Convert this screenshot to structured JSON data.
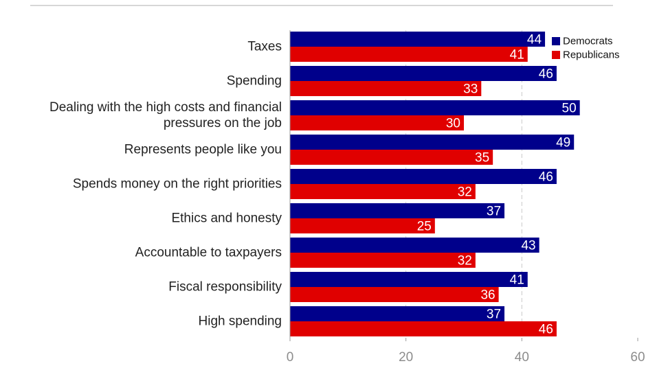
{
  "chart_data": {
    "type": "bar",
    "orientation": "horizontal",
    "categories": [
      [
        "Taxes"
      ],
      [
        "Spending"
      ],
      [
        "Dealing with the high costs and financial",
        "pressures on the job"
      ],
      [
        "Represents people like you"
      ],
      [
        "Spends money on the right priorities"
      ],
      [
        "Ethics and honesty"
      ],
      [
        "Accountable to taxpayers"
      ],
      [
        "Fiscal responsibility"
      ],
      [
        "High spending"
      ]
    ],
    "series": [
      {
        "name": "Democrats",
        "color": "#00008b",
        "values": [
          44,
          46,
          50,
          49,
          46,
          37,
          43,
          41,
          37
        ]
      },
      {
        "name": "Republicans",
        "color": "#e00000",
        "values": [
          41,
          33,
          30,
          35,
          32,
          25,
          32,
          36,
          46
        ]
      }
    ],
    "xlim": [
      0,
      60
    ],
    "xticks": [
      0,
      20,
      40,
      60
    ],
    "grid": "dashed vertical at 40",
    "legend": "top-right",
    "title": "",
    "xlabel": "",
    "ylabel": ""
  }
}
